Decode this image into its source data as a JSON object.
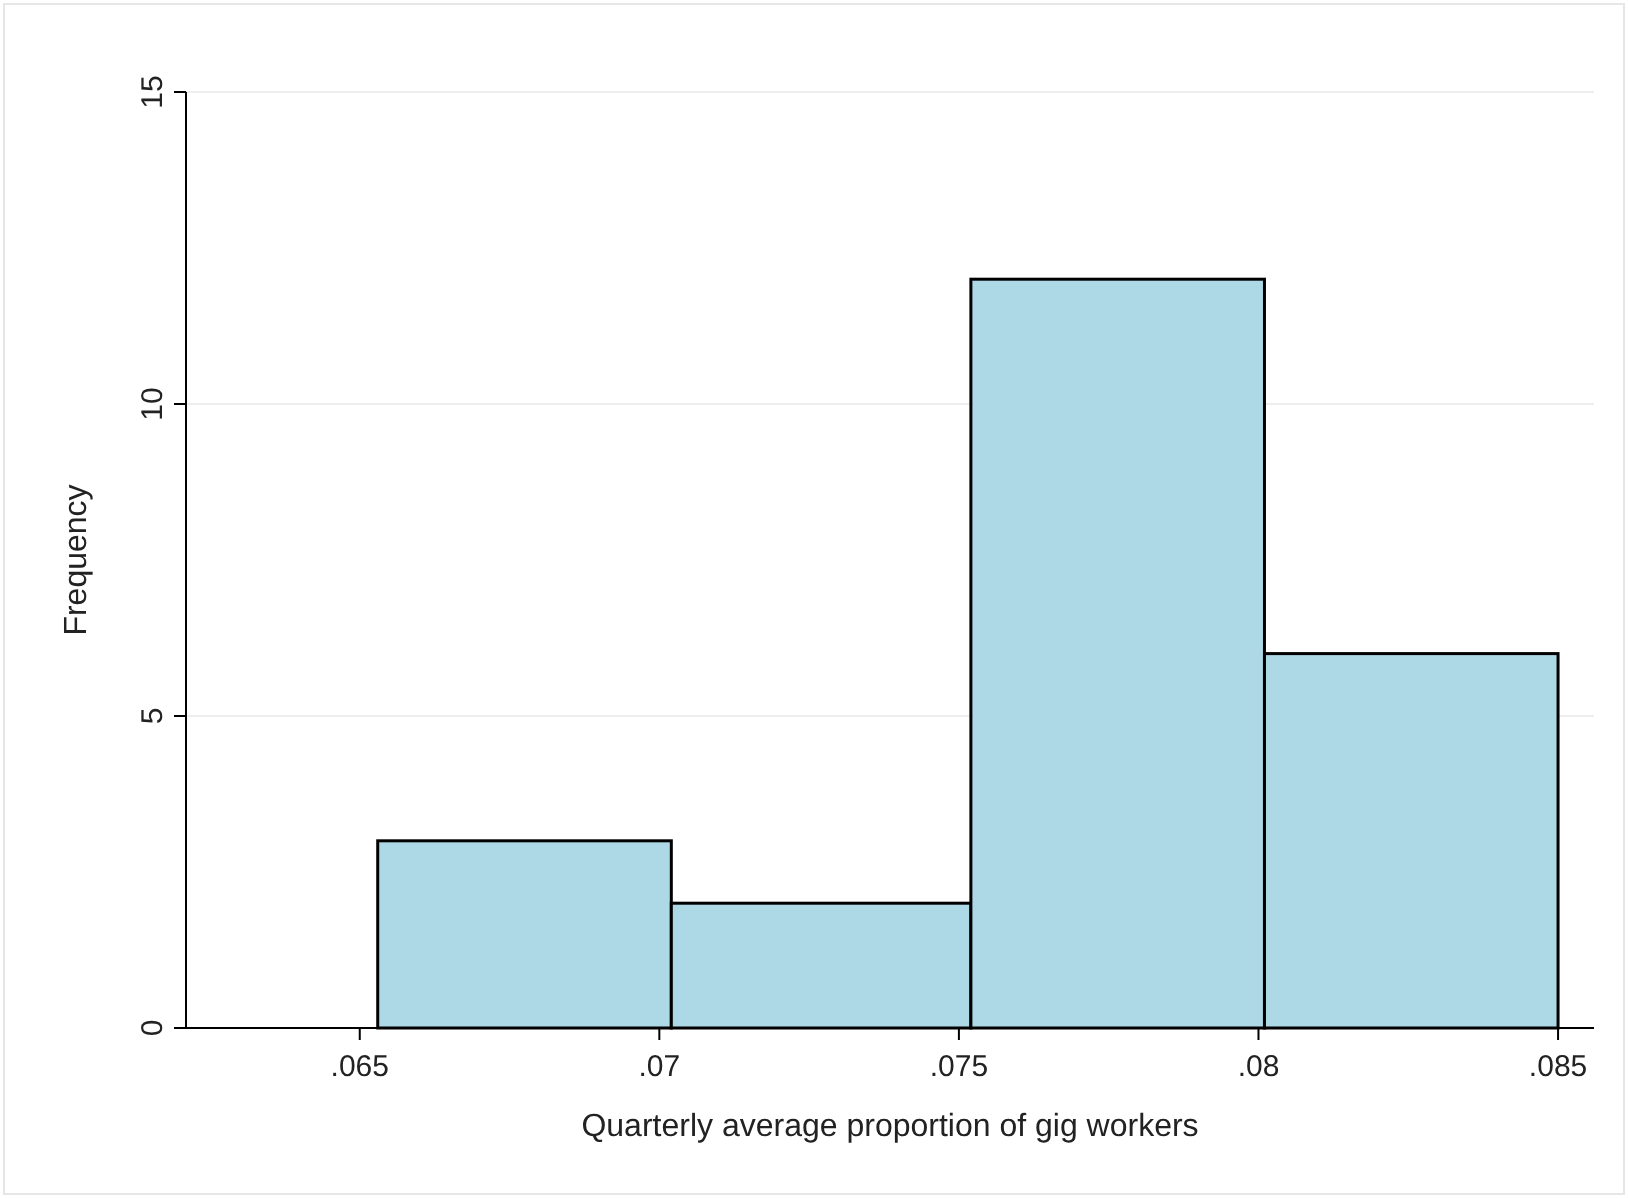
{
  "chart_data": {
    "type": "histogram",
    "xlabel": "Quarterly average proportion of gig workers",
    "ylabel": "Frequency",
    "bins": [
      0.0653,
      0.0702,
      0.0752,
      0.0801,
      0.085
    ],
    "values": [
      3,
      2,
      12,
      6
    ],
    "color": "#add8e6",
    "xlim": [
      0.0621,
      0.0856
    ],
    "ylim": [
      0,
      15
    ],
    "xticks": [
      {
        "value": 0.065,
        "label": ".065"
      },
      {
        "value": 0.07,
        "label": ".07"
      },
      {
        "value": 0.075,
        "label": ".075"
      },
      {
        "value": 0.08,
        "label": ".08"
      },
      {
        "value": 0.085,
        "label": ".085"
      }
    ],
    "yticks": [
      0,
      5,
      10,
      15
    ],
    "grid": "y"
  }
}
